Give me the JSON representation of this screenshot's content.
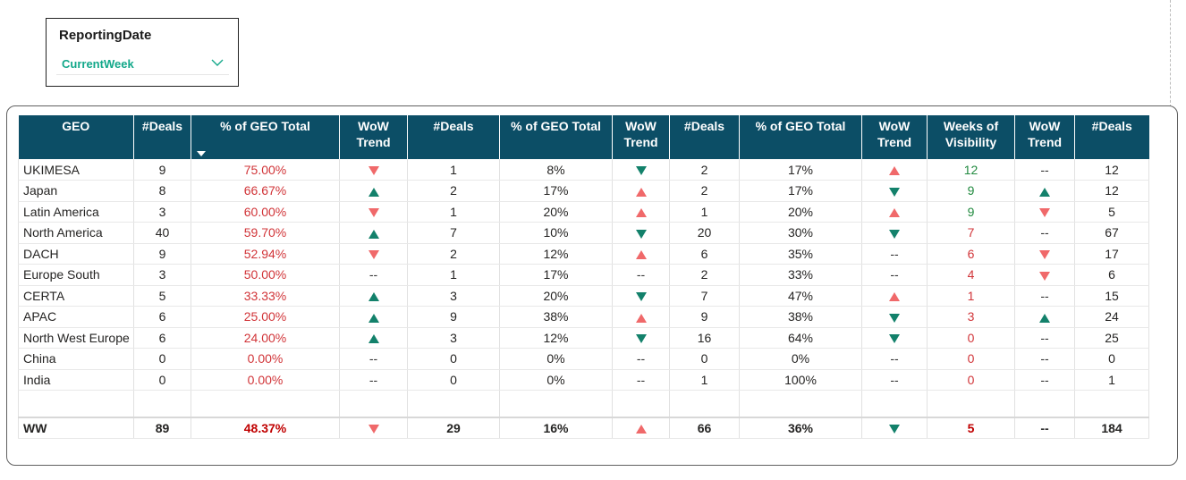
{
  "slicer": {
    "title": "ReportingDate",
    "value": "CurrentWeek"
  },
  "colors": {
    "header_bg": "#0c4e66",
    "accent_green": "#13a88a",
    "trend_red": "#f0696a",
    "trend_teal": "#13816b",
    "value_red": "#d13438"
  },
  "table": {
    "headers": [
      "GEO",
      "#Deals",
      "% of GEO Total",
      "WoW Trend",
      "#Deals",
      "% of GEO Total",
      "WoW Trend",
      "#Deals",
      "% of GEO Total",
      "WoW Trend",
      "Weeks of Visibility",
      "WoW Trend",
      "#Deals"
    ],
    "header_lines": [
      [
        "GEO"
      ],
      [
        "#Deals"
      ],
      [
        "% of GEO Total"
      ],
      [
        "WoW",
        "Trend"
      ],
      [
        "#Deals"
      ],
      [
        "% of GEO Total"
      ],
      [
        "WoW",
        "Trend"
      ],
      [
        "#Deals"
      ],
      [
        "% of GEO Total"
      ],
      [
        "WoW",
        "Trend"
      ],
      [
        "Weeks of",
        "Visibility"
      ],
      [
        "WoW",
        "Trend"
      ],
      [
        "#Deals"
      ]
    ],
    "rows": [
      [
        "UKIMESA",
        "9",
        "75.00%",
        "down-red",
        "1",
        "8%",
        "down-teal",
        "2",
        "17%",
        "up-red",
        "12",
        "--",
        "12"
      ],
      [
        "Japan",
        "8",
        "66.67%",
        "up-teal",
        "2",
        "17%",
        "up-red",
        "2",
        "17%",
        "down-teal",
        "9",
        "up-teal",
        "12"
      ],
      [
        "Latin America",
        "3",
        "60.00%",
        "down-red",
        "1",
        "20%",
        "up-red",
        "1",
        "20%",
        "up-red",
        "9",
        "down-red",
        "5"
      ],
      [
        "North America",
        "40",
        "59.70%",
        "up-teal",
        "7",
        "10%",
        "down-teal",
        "20",
        "30%",
        "down-teal",
        "7",
        "--",
        "67"
      ],
      [
        "DACH",
        "9",
        "52.94%",
        "down-red",
        "2",
        "12%",
        "up-red",
        "6",
        "35%",
        "--",
        "6",
        "down-red",
        "17"
      ],
      [
        "Europe South",
        "3",
        "50.00%",
        "--",
        "1",
        "17%",
        "--",
        "2",
        "33%",
        "--",
        "4",
        "down-red",
        "6"
      ],
      [
        "CERTA",
        "5",
        "33.33%",
        "up-teal",
        "3",
        "20%",
        "down-teal",
        "7",
        "47%",
        "up-red",
        "1",
        "--",
        "15"
      ],
      [
        "APAC",
        "6",
        "25.00%",
        "up-teal",
        "9",
        "38%",
        "up-red",
        "9",
        "38%",
        "down-teal",
        "3",
        "up-teal",
        "24"
      ],
      [
        "North West Europe",
        "6",
        "24.00%",
        "up-teal",
        "3",
        "12%",
        "down-teal",
        "16",
        "64%",
        "down-teal",
        "0",
        "--",
        "25"
      ],
      [
        "China",
        "0",
        "0.00%",
        "--",
        "0",
        "0%",
        "--",
        "0",
        "0%",
        "--",
        "0",
        "--",
        "0"
      ],
      [
        "India",
        "0",
        "0.00%",
        "--",
        "0",
        "0%",
        "--",
        "1",
        "100%",
        "--",
        "0",
        "--",
        "1"
      ]
    ],
    "weeks_colors": [
      "green",
      "green",
      "green",
      "red",
      "red",
      "red",
      "red",
      "red",
      "red",
      "red",
      "red"
    ],
    "total": [
      "WW",
      "89",
      "48.37%",
      "down-red",
      "29",
      "16%",
      "up-red",
      "66",
      "36%",
      "down-teal",
      "5",
      "--",
      "184"
    ]
  }
}
